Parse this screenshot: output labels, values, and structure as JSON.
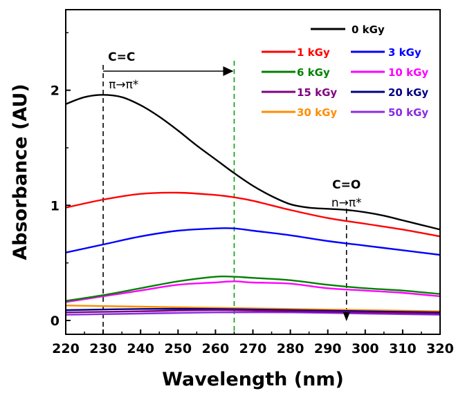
{
  "chart_data": {
    "type": "line",
    "xlabel": "Wavelength (nm)",
    "ylabel": "Absorbance (AU)",
    "xlim": [
      220,
      320
    ],
    "ylim": [
      -0.12,
      2.7
    ],
    "xticks": [
      220,
      230,
      240,
      250,
      260,
      270,
      280,
      290,
      300,
      310,
      320
    ],
    "xtick_labels": [
      "220",
      "230",
      "240",
      "250",
      "260",
      "270",
      "280",
      "290",
      "300",
      "310",
      "320"
    ],
    "yticks": [
      0,
      1,
      2
    ],
    "ytick_labels": [
      "0",
      "1",
      "2"
    ],
    "grid": false,
    "legend_position": "top-right",
    "series": [
      {
        "name": "0 kGy",
        "color": "#000000",
        "x": [
          220,
          225,
          230,
          235,
          240,
          245,
          250,
          255,
          260,
          265,
          270,
          275,
          280,
          285,
          290,
          295,
          300,
          305,
          310,
          315,
          320
        ],
        "y": [
          1.88,
          1.94,
          1.96,
          1.94,
          1.87,
          1.77,
          1.65,
          1.52,
          1.4,
          1.28,
          1.17,
          1.08,
          1.01,
          0.98,
          0.97,
          0.96,
          0.94,
          0.91,
          0.87,
          0.83,
          0.79
        ]
      },
      {
        "name": "1 kGy",
        "color": "#ff0000",
        "x": [
          220,
          230,
          240,
          250,
          260,
          265,
          270,
          280,
          290,
          300,
          310,
          320
        ],
        "y": [
          0.98,
          1.05,
          1.1,
          1.11,
          1.09,
          1.07,
          1.04,
          0.96,
          0.89,
          0.84,
          0.79,
          0.73
        ]
      },
      {
        "name": "3 kGy",
        "color": "#0000ff",
        "x": [
          220,
          230,
          240,
          250,
          260,
          265,
          270,
          280,
          290,
          300,
          310,
          320
        ],
        "y": [
          0.59,
          0.66,
          0.73,
          0.78,
          0.8,
          0.8,
          0.78,
          0.74,
          0.69,
          0.65,
          0.61,
          0.57
        ]
      },
      {
        "name": "6 kGy",
        "color": "#008000",
        "x": [
          220,
          230,
          240,
          250,
          260,
          265,
          270,
          280,
          290,
          300,
          310,
          320
        ],
        "y": [
          0.17,
          0.22,
          0.28,
          0.34,
          0.38,
          0.38,
          0.37,
          0.35,
          0.31,
          0.28,
          0.26,
          0.23
        ]
      },
      {
        "name": "10 kGy",
        "color": "#ff00ff",
        "x": [
          220,
          230,
          240,
          250,
          260,
          265,
          270,
          280,
          290,
          300,
          310,
          320
        ],
        "y": [
          0.16,
          0.21,
          0.26,
          0.31,
          0.33,
          0.34,
          0.33,
          0.32,
          0.28,
          0.26,
          0.24,
          0.21
        ]
      },
      {
        "name": "15 kGy",
        "color": "#800080",
        "x": [
          220,
          240,
          260,
          280,
          300,
          320
        ],
        "y": [
          0.07,
          0.08,
          0.09,
          0.08,
          0.07,
          0.06
        ]
      },
      {
        "name": "20 kGy",
        "color": "#000080",
        "x": [
          220,
          240,
          260,
          280,
          300,
          320
        ],
        "y": [
          0.09,
          0.1,
          0.1,
          0.09,
          0.08,
          0.07
        ]
      },
      {
        "name": "30 kGy",
        "color": "#ff8c00",
        "x": [
          220,
          240,
          260,
          280,
          300,
          320
        ],
        "y": [
          0.13,
          0.12,
          0.11,
          0.1,
          0.09,
          0.08
        ]
      },
      {
        "name": "50 kGy",
        "color": "#8a2be2",
        "x": [
          220,
          240,
          260,
          280,
          300,
          320
        ],
        "y": [
          0.05,
          0.06,
          0.07,
          0.07,
          0.06,
          0.05
        ]
      }
    ],
    "annotations": [
      {
        "title": "C=C",
        "subtitle": "π→π*",
        "x": 230,
        "arrow_to_x": 265
      },
      {
        "title": "C=O",
        "subtitle": "n→π*",
        "x": 295
      }
    ]
  }
}
